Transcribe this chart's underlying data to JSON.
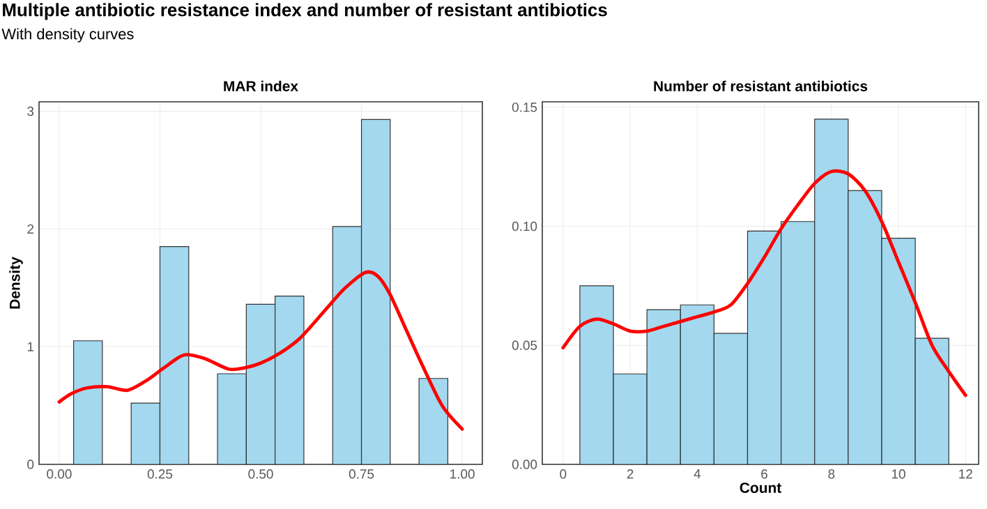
{
  "chart_data": [
    {
      "type": "histogram",
      "title": "MAR index",
      "ylabel": "Density",
      "annotations": [
        "Multiple antibiotic resistance index and number of resistant antibiotics",
        "With density curves"
      ],
      "bins": [
        0.0357,
        0.1071,
        0.1786,
        0.25,
        0.3214,
        0.3929,
        0.4643,
        0.5357,
        0.6071,
        0.6786,
        0.75,
        0.8214,
        0.8929,
        0.9643
      ],
      "values": [
        1.05,
        0,
        0.52,
        1.85,
        0,
        0.77,
        1.36,
        1.43,
        0,
        2.02,
        2.93,
        0,
        0.73
      ],
      "color": "#a3d8ef",
      "series": [
        {
          "type": "line",
          "color": "#ff0000",
          "x": [
            0,
            0.03,
            0.07,
            0.12,
            0.17,
            0.22,
            0.26,
            0.31,
            0.36,
            0.42,
            0.46,
            0.5,
            0.55,
            0.6,
            0.67,
            0.71,
            0.76,
            0.79,
            0.82,
            0.86,
            0.9,
            0.95,
            1.0
          ],
          "values": [
            0.53,
            0.6,
            0.65,
            0.66,
            0.63,
            0.72,
            0.82,
            0.93,
            0.9,
            0.81,
            0.82,
            0.86,
            0.95,
            1.08,
            1.35,
            1.5,
            1.63,
            1.6,
            1.45,
            1.15,
            0.85,
            0.5,
            0.3
          ]
        }
      ],
      "xlim": [
        -0.05,
        1.05
      ],
      "ylim": [
        0,
        3.08
      ],
      "xticks": [
        {
          "value": 0,
          "label": "0.00"
        },
        {
          "value": 0.25,
          "label": "0.25"
        },
        {
          "value": 0.5,
          "label": "0.50"
        },
        {
          "value": 0.75,
          "label": "0.75"
        },
        {
          "value": 1,
          "label": "1.00"
        }
      ],
      "yticks": [
        0,
        1,
        2,
        3
      ],
      "grid": true
    },
    {
      "type": "histogram",
      "title": "Number of resistant antibiotics",
      "xlabel": "Count",
      "bins": [
        0.5,
        1.5,
        2.5,
        3.5,
        4.5,
        5.5,
        6.5,
        7.5,
        8.5,
        9.5,
        10.5,
        11.5
      ],
      "values": [
        0.075,
        0.038,
        0.065,
        0.067,
        0.055,
        0.098,
        0.102,
        0.145,
        0.115,
        0.095,
        0.053
      ],
      "color": "#a3d8ef",
      "series": [
        {
          "type": "line",
          "color": "#ff0000",
          "x": [
            0,
            0.5,
            1,
            1.5,
            2,
            2.5,
            3,
            4,
            4.5,
            5,
            5.5,
            6,
            6.5,
            7,
            7.5,
            8,
            8.5,
            9,
            9.5,
            10,
            10.5,
            11,
            11.5,
            12
          ],
          "values": [
            0.049,
            0.058,
            0.061,
            0.059,
            0.056,
            0.056,
            0.058,
            0.062,
            0.064,
            0.067,
            0.076,
            0.087,
            0.099,
            0.109,
            0.118,
            0.123,
            0.122,
            0.115,
            0.102,
            0.085,
            0.068,
            0.05,
            0.039,
            0.029
          ]
        }
      ],
      "xlim": [
        -0.62,
        12.39
      ],
      "ylim": [
        0,
        0.1523
      ],
      "xticks": [
        0,
        2,
        4,
        6,
        8,
        10,
        12
      ],
      "yticks": [
        {
          "value": 0,
          "label": "0.00"
        },
        {
          "value": 0.05,
          "label": "0.05"
        },
        {
          "value": 0.1,
          "label": "0.10"
        },
        {
          "value": 0.15,
          "label": "0.15"
        }
      ],
      "grid": true
    }
  ]
}
